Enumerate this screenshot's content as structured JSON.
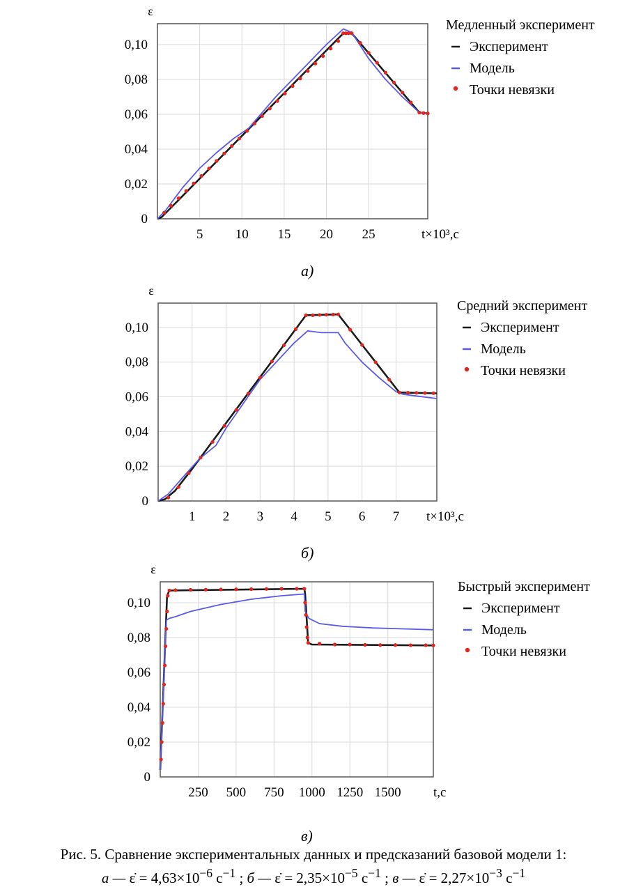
{
  "figure": {
    "caption_line1": "Рис. 5. Сравнение экспериментальных данных и предсказаний базовой модели 1:",
    "caption_line2": [
      {
        "label": "а — ",
        "rate": "ε̇ = 4,63×10",
        "exp": "−6",
        "unit": " с",
        "unit_exp": "−1",
        "sep": " ; "
      },
      {
        "label": "б — ",
        "rate": "ε̇ = 2,35×10",
        "exp": "−5",
        "unit": " с",
        "unit_exp": "−1",
        "sep": " ; "
      },
      {
        "label": "в — ",
        "rate": "ε̇ = 2,27×10",
        "exp": "−3",
        "unit": " с",
        "unit_exp": "−1",
        "sep": ""
      }
    ]
  },
  "colors": {
    "experiment": "#1a1a1a",
    "model": "#5a5ae6",
    "points": "#e0261f",
    "grid": "#d9d9d9",
    "frame": "#555555"
  },
  "chart_data": [
    {
      "type": "line",
      "panel_label": "а)",
      "title": "Медленный эксперимент",
      "ylabel": "ε",
      "xlabel": "t×10³,с",
      "xlim": [
        0,
        32
      ],
      "ylim": [
        0,
        0.112
      ],
      "xticks": [
        5,
        10,
        15,
        20,
        25
      ],
      "yticks": [
        0,
        0.02,
        0.04,
        0.06,
        0.08,
        0.1
      ],
      "ytick_labels": [
        "0",
        "0,02",
        "0,04",
        "0,06",
        "0,08",
        "0,10"
      ],
      "series": [
        {
          "name": "Эксперимент",
          "style": "line",
          "x": [
            0,
            0.5,
            22.0,
            23.0,
            31.0,
            32.0
          ],
          "y": [
            0,
            0.001,
            0.1065,
            0.1065,
            0.061,
            0.0605
          ]
        },
        {
          "name": "Модель",
          "style": "line",
          "x": [
            0,
            1,
            3,
            5,
            7,
            9,
            10.8,
            14,
            17,
            20,
            22,
            23,
            25,
            27,
            29,
            31,
            32
          ],
          "y": [
            0,
            0.005,
            0.018,
            0.029,
            0.038,
            0.046,
            0.052,
            0.07,
            0.085,
            0.1,
            0.109,
            0.107,
            0.092,
            0.08,
            0.07,
            0.061,
            0.0605
          ]
        },
        {
          "name": "Точки невязки",
          "style": "points",
          "x": [
            0.8,
            1.6,
            2.5,
            3.4,
            4.3,
            5.2,
            6.1,
            7.0,
            7.9,
            8.8,
            9.7,
            10.6,
            11.5,
            12.4,
            13.3,
            14.2,
            15.1,
            16.0,
            16.9,
            17.8,
            18.7,
            19.6,
            20.5,
            21.4,
            22.0,
            22.3,
            22.6,
            23.0,
            24.0,
            25.0,
            26.0,
            27.0,
            28.0,
            29.0,
            30.0,
            31.0,
            31.5,
            32.0
          ],
          "y": [
            0.0035,
            0.0075,
            0.0118,
            0.016,
            0.0203,
            0.0246,
            0.0289,
            0.0332,
            0.0375,
            0.0418,
            0.0461,
            0.0504,
            0.0547,
            0.059,
            0.0633,
            0.0676,
            0.0719,
            0.0762,
            0.0805,
            0.0848,
            0.0891,
            0.0934,
            0.0977,
            0.102,
            0.1065,
            0.1065,
            0.1065,
            0.1065,
            0.101,
            0.0953,
            0.0896,
            0.0839,
            0.0782,
            0.0725,
            0.0668,
            0.061,
            0.0607,
            0.0605
          ]
        }
      ]
    },
    {
      "type": "line",
      "panel_label": "б)",
      "title": "Средний эксперимент",
      "ylabel": "ε",
      "xlabel": "t×10³,с",
      "xlim": [
        0,
        8.2
      ],
      "ylim": [
        0,
        0.114
      ],
      "xticks": [
        1,
        2,
        3,
        4,
        5,
        6,
        7
      ],
      "yticks": [
        0,
        0.02,
        0.04,
        0.06,
        0.08,
        0.1
      ],
      "ytick_labels": [
        "0",
        "0,02",
        "0,04",
        "0,06",
        "0,08",
        "0,10"
      ],
      "series": [
        {
          "name": "Эксперимент",
          "style": "line",
          "x": [
            0,
            0.2,
            0.5,
            1.0,
            4.35,
            5.3,
            7.1,
            8.2
          ],
          "y": [
            0,
            0.001,
            0.006,
            0.0185,
            0.107,
            0.1075,
            0.0625,
            0.062
          ]
        },
        {
          "name": "Модель",
          "style": "line",
          "x": [
            0,
            0.3,
            0.7,
            1.2,
            1.7,
            2.0,
            3.0,
            4.0,
            4.4,
            4.8,
            5.3,
            5.5,
            6.0,
            6.5,
            7.0,
            7.2,
            7.6,
            8.2
          ],
          "y": [
            0,
            0.004,
            0.013,
            0.024,
            0.032,
            0.042,
            0.07,
            0.091,
            0.098,
            0.097,
            0.097,
            0.091,
            0.08,
            0.071,
            0.063,
            0.0615,
            0.0605,
            0.059
          ]
        },
        {
          "name": "Точки невязки",
          "style": "points",
          "x": [
            0.3,
            0.6,
            0.9,
            1.25,
            1.6,
            1.95,
            2.3,
            2.65,
            3.0,
            3.35,
            3.7,
            4.05,
            4.35,
            4.55,
            4.75,
            4.95,
            5.15,
            5.3,
            5.65,
            6.0,
            6.4,
            6.8,
            7.1,
            7.35,
            7.6,
            7.85,
            8.1
          ],
          "y": [
            0.002,
            0.008,
            0.016,
            0.025,
            0.034,
            0.0433,
            0.0525,
            0.0618,
            0.0711,
            0.0804,
            0.0897,
            0.099,
            0.107,
            0.107,
            0.1072,
            0.1073,
            0.1074,
            0.1075,
            0.0987,
            0.0899,
            0.0799,
            0.0699,
            0.0625,
            0.0624,
            0.0623,
            0.0622,
            0.0621
          ]
        }
      ]
    },
    {
      "type": "line",
      "panel_label": "в)",
      "title": "Быстрый эксперимент",
      "ylabel": "ε",
      "xlabel": "t,с",
      "xlim": [
        0,
        1800
      ],
      "ylim": [
        0,
        0.112
      ],
      "xticks": [
        250,
        500,
        750,
        1000,
        1250,
        1500
      ],
      "yticks": [
        0,
        0.02,
        0.04,
        0.06,
        0.08,
        0.1
      ],
      "ytick_labels": [
        "0",
        "0,02",
        "0,04",
        "0,06",
        "0,08",
        "0,10"
      ],
      "series": [
        {
          "name": "Эксперимент",
          "style": "line",
          "x": [
            0,
            45,
            60,
            950,
            955,
            975,
            1000,
            1800
          ],
          "y": [
            0.004,
            0.104,
            0.107,
            0.108,
            0.105,
            0.077,
            0.076,
            0.0755
          ]
        },
        {
          "name": "Модель",
          "style": "line",
          "x": [
            0,
            40,
            60,
            100,
            200,
            400,
            600,
            800,
            950,
            955,
            980,
            1050,
            1200,
            1400,
            1600,
            1800
          ],
          "y": [
            0.004,
            0.09,
            0.091,
            0.092,
            0.095,
            0.099,
            0.102,
            0.104,
            0.105,
            0.095,
            0.091,
            0.088,
            0.0865,
            0.0855,
            0.085,
            0.0845
          ]
        },
        {
          "name": "Точки невязки",
          "style": "points",
          "x": [
            5,
            10,
            15,
            20,
            25,
            30,
            35,
            40,
            45,
            50,
            60,
            100,
            200,
            300,
            400,
            500,
            600,
            700,
            800,
            900,
            950,
            955,
            960,
            965,
            970,
            975,
            1050,
            1150,
            1250,
            1350,
            1450,
            1550,
            1650,
            1750,
            1800
          ],
          "y": [
            0.01,
            0.02,
            0.031,
            0.042,
            0.053,
            0.064,
            0.075,
            0.085,
            0.095,
            0.104,
            0.107,
            0.1072,
            0.1074,
            0.1075,
            0.1076,
            0.1077,
            0.1078,
            0.1079,
            0.108,
            0.108,
            0.108,
            0.1,
            0.093,
            0.086,
            0.08,
            0.077,
            0.0765,
            0.076,
            0.076,
            0.0758,
            0.0757,
            0.0757,
            0.0756,
            0.0756,
            0.0755
          ]
        }
      ]
    }
  ]
}
